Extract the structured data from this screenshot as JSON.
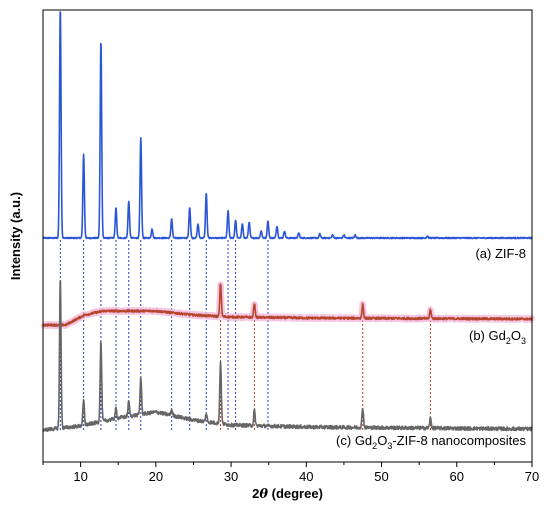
{
  "chart_data": {
    "type": "line",
    "xlabel_prefix": "2",
    "xlabel_symbol": "θ",
    "xlabel_suffix": " (degree)",
    "ylabel": "Intensity (a.u.)",
    "xlim": [
      5,
      70
    ],
    "xticks": [
      10,
      20,
      30,
      40,
      50,
      60,
      70
    ],
    "xticklabels": [
      "10",
      "20",
      "30",
      "40",
      "50",
      "60",
      "70"
    ],
    "colors": {
      "zif8": "#2a55d6",
      "gd2o3": "#b5452c",
      "composite": "#666666",
      "gd2o3_halo": "#f4b6d9",
      "zif8_ref_line": "#1f3fbf",
      "gd2o3_ref_line": "#c0392b"
    },
    "series": [
      {
        "key": "zif8",
        "label": {
          "prefix": "(a) ZIF-8",
          "sub1": "",
          "mid": "",
          "sub2": "",
          "suffix": ""
        },
        "baseline_y": 238,
        "noise": 0.6,
        "peaks": [
          {
            "x": 7.3,
            "h": 230
          },
          {
            "x": 10.4,
            "h": 84
          },
          {
            "x": 12.7,
            "h": 198
          },
          {
            "x": 14.7,
            "h": 30
          },
          {
            "x": 16.4,
            "h": 37
          },
          {
            "x": 18.0,
            "h": 100
          },
          {
            "x": 19.5,
            "h": 9
          },
          {
            "x": 22.1,
            "h": 19
          },
          {
            "x": 24.5,
            "h": 31
          },
          {
            "x": 25.6,
            "h": 14
          },
          {
            "x": 26.7,
            "h": 45
          },
          {
            "x": 29.6,
            "h": 27
          },
          {
            "x": 30.6,
            "h": 18
          },
          {
            "x": 31.5,
            "h": 14
          },
          {
            "x": 32.4,
            "h": 16
          },
          {
            "x": 34.0,
            "h": 7
          },
          {
            "x": 34.9,
            "h": 17
          },
          {
            "x": 36.1,
            "h": 12
          },
          {
            "x": 37.1,
            "h": 7
          },
          {
            "x": 39.0,
            "h": 5
          },
          {
            "x": 41.8,
            "h": 4
          },
          {
            "x": 43.5,
            "h": 3
          },
          {
            "x": 45.0,
            "h": 3
          },
          {
            "x": 46.5,
            "h": 3
          },
          {
            "x": 56.1,
            "h": 2
          }
        ]
      },
      {
        "key": "gd2o3",
        "label": {
          "prefix": "(b) Gd",
          "sub1": "2",
          "mid": "O",
          "sub2": "3",
          "suffix": ""
        },
        "baseline_y": 325,
        "noise": 1.1,
        "hump": [
          {
            "x": 5,
            "y": 0
          },
          {
            "x": 8,
            "y": 0
          },
          {
            "x": 10.5,
            "y": 10
          },
          {
            "x": 13,
            "y": 14
          },
          {
            "x": 20,
            "y": 14
          },
          {
            "x": 25,
            "y": 10
          },
          {
            "x": 30,
            "y": 8
          },
          {
            "x": 40,
            "y": 7
          },
          {
            "x": 70,
            "y": 6
          }
        ],
        "peaks": [
          {
            "x": 28.6,
            "h": 33
          },
          {
            "x": 33.1,
            "h": 14
          },
          {
            "x": 47.5,
            "h": 14
          },
          {
            "x": 56.5,
            "h": 9
          }
        ]
      },
      {
        "key": "composite",
        "label": {
          "prefix": "(c) Gd",
          "sub1": "2",
          "mid": "O",
          "sub2": "3",
          "suffix": "-ZIF-8 nanocomposites"
        },
        "baseline_y": 430,
        "noise": 1.8,
        "hump": [
          {
            "x": 5,
            "y": 0
          },
          {
            "x": 10,
            "y": 4
          },
          {
            "x": 15,
            "y": 12
          },
          {
            "x": 20,
            "y": 18
          },
          {
            "x": 25,
            "y": 10
          },
          {
            "x": 30,
            "y": 5
          },
          {
            "x": 40,
            "y": 3
          },
          {
            "x": 70,
            "y": 1
          }
        ],
        "peaks": [
          {
            "x": 7.3,
            "h": 150
          },
          {
            "x": 10.4,
            "h": 25
          },
          {
            "x": 12.7,
            "h": 80
          },
          {
            "x": 14.7,
            "h": 10
          },
          {
            "x": 16.4,
            "h": 15
          },
          {
            "x": 18.0,
            "h": 37
          },
          {
            "x": 22.1,
            "h": 6
          },
          {
            "x": 26.7,
            "h": 8
          },
          {
            "x": 28.6,
            "h": 62
          },
          {
            "x": 33.1,
            "h": 15
          },
          {
            "x": 47.5,
            "h": 20
          },
          {
            "x": 56.5,
            "h": 10
          }
        ]
      }
    ],
    "zif8_ref_lines": [
      7.3,
      10.4,
      12.7,
      14.7,
      16.4,
      18.0,
      22.1,
      24.5,
      26.7,
      29.6,
      30.6,
      34.9
    ],
    "gd2o3_ref_lines": [
      28.6,
      33.1,
      47.5,
      56.5
    ]
  }
}
